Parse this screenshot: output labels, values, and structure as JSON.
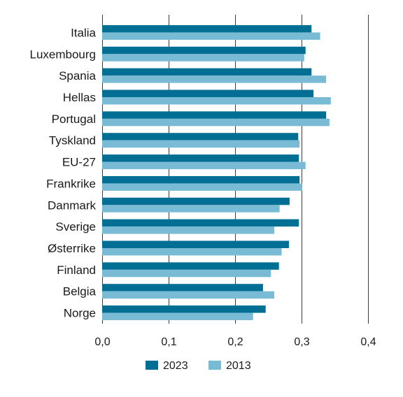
{
  "chart_data": {
    "type": "bar",
    "orientation": "horizontal",
    "categories": [
      "Italia",
      "Luxembourg",
      "Spania",
      "Hellas",
      "Portugal",
      "Tyskland",
      "EU-27",
      "Frankrike",
      "Danmark",
      "Sverige",
      "Østerrike",
      "Finland",
      "Belgia",
      "Norge"
    ],
    "series": [
      {
        "name": "2023",
        "color": "#006f93",
        "values": [
          0.315,
          0.306,
          0.315,
          0.318,
          0.337,
          0.295,
          0.296,
          0.297,
          0.282,
          0.296,
          0.281,
          0.266,
          0.242,
          0.246
        ]
      },
      {
        "name": "2013",
        "color": "#79bbd4",
        "values": [
          0.328,
          0.304,
          0.337,
          0.344,
          0.342,
          0.297,
          0.306,
          0.301,
          0.267,
          0.259,
          0.27,
          0.254,
          0.259,
          0.227
        ]
      }
    ],
    "x_ticks": [
      "0,0",
      "0,1",
      "0,2",
      "0,3",
      "0,4"
    ],
    "xlim": [
      0,
      0.4
    ],
    "grid": "vertical",
    "legend_position": "bottom"
  }
}
